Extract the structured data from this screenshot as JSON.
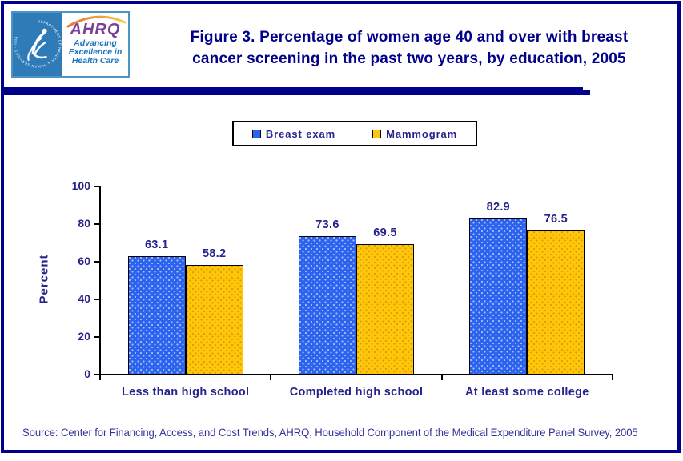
{
  "page": {
    "background": "#FFFFFF",
    "border_color": "#00008B"
  },
  "logo": {
    "seal_text": "DEPARTMENT OF HEALTH & HUMAN SERVICES - USA",
    "ahrq_acronym": "AHRQ",
    "tagline_lines": [
      "Advancing",
      "Excellence in",
      "Health Care"
    ]
  },
  "header": {
    "title_lines": [
      "Figure 3. Percentage of women age 40 and over with breast",
      "cancer screening in the past two years, by education, 2005"
    ],
    "title_color": "#00008B"
  },
  "chart_data": {
    "type": "bar",
    "title": "Figure 3. Percentage of women age 40 and over with breast cancer screening in the past two years, by education, 2005",
    "categories": [
      "Less than high school",
      "Completed high school",
      "At least some college"
    ],
    "series": [
      {
        "name": "Breast exam",
        "color": "#2D62EE",
        "values": [
          63.1,
          73.6,
          82.9
        ]
      },
      {
        "name": "Mammogram",
        "color": "#FFC60A",
        "values": [
          58.2,
          69.5,
          76.5
        ]
      }
    ],
    "xlabel": "",
    "ylabel": "Percent",
    "ylim": [
      0,
      100
    ],
    "yticks": [
      0,
      20,
      40,
      60,
      80,
      100
    ],
    "grid": false,
    "legend_position": "top-center",
    "value_labels": true,
    "label_color": "#26238C"
  },
  "source": {
    "text": "Source: Center for Financing, Access, and Cost Trends, AHRQ, Household Component of the Medical Expenditure Panel Survey, 2005"
  }
}
